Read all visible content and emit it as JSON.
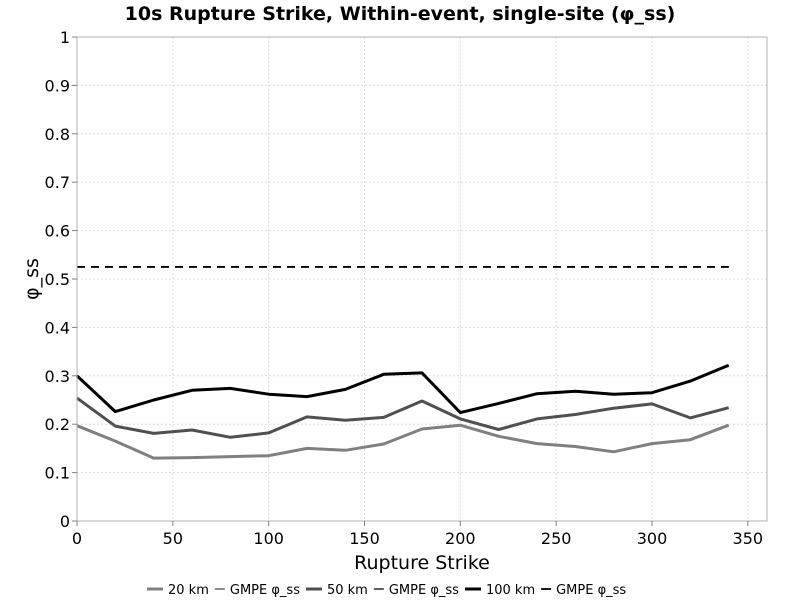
{
  "chart_data": {
    "type": "line",
    "title": "10s Rupture Strike, Within-event, single-site (φ_ss)",
    "xlabel": "Rupture Strike",
    "ylabel": "φ_ss",
    "xlim": [
      0,
      360
    ],
    "ylim": [
      0,
      1
    ],
    "x_ticks": [
      "0",
      "50",
      "100",
      "150",
      "200",
      "250",
      "300",
      "350"
    ],
    "y_ticks": [
      "0",
      "0.1",
      "0.2",
      "0.3",
      "0.4",
      "0.5",
      "0.6",
      "0.7",
      "0.8",
      "0.9",
      "1"
    ],
    "grid": true,
    "legend_position": "bottom",
    "x": [
      0,
      20,
      40,
      60,
      80,
      100,
      120,
      140,
      160,
      180,
      200,
      220,
      240,
      260,
      280,
      300,
      320,
      340
    ],
    "series": [
      {
        "name": "20 km",
        "color": "#808080",
        "style": "solid",
        "values": [
          0.197,
          0.165,
          0.13,
          0.131,
          0.133,
          0.135,
          0.15,
          0.146,
          0.159,
          0.19,
          0.198,
          0.175,
          0.16,
          0.154,
          0.143,
          0.16,
          0.168,
          0.198
        ]
      },
      {
        "name": "GMPE φ_ss",
        "color": "#808080",
        "style": "dashed",
        "values": [
          0.525,
          0.525,
          0.525,
          0.525,
          0.525,
          0.525,
          0.525,
          0.525,
          0.525,
          0.525,
          0.525,
          0.525,
          0.525,
          0.525,
          0.525,
          0.525,
          0.525,
          0.525
        ]
      },
      {
        "name": "50 km",
        "color": "#505050",
        "style": "solid",
        "values": [
          0.254,
          0.196,
          0.181,
          0.188,
          0.173,
          0.182,
          0.215,
          0.208,
          0.214,
          0.248,
          0.211,
          0.189,
          0.211,
          0.22,
          0.233,
          0.242,
          0.213,
          0.234
        ]
      },
      {
        "name": "GMPE φ_ss",
        "color": "#505050",
        "style": "dashed",
        "values": [
          0.525,
          0.525,
          0.525,
          0.525,
          0.525,
          0.525,
          0.525,
          0.525,
          0.525,
          0.525,
          0.525,
          0.525,
          0.525,
          0.525,
          0.525,
          0.525,
          0.525,
          0.525
        ]
      },
      {
        "name": "100 km",
        "color": "#000000",
        "style": "solid",
        "values": [
          0.3,
          0.226,
          0.25,
          0.27,
          0.274,
          0.262,
          0.257,
          0.272,
          0.303,
          0.306,
          0.224,
          0.243,
          0.263,
          0.268,
          0.262,
          0.265,
          0.289,
          0.322
        ]
      },
      {
        "name": "GMPE φ_ss",
        "color": "#000000",
        "style": "dashed",
        "values": [
          0.525,
          0.525,
          0.525,
          0.525,
          0.525,
          0.525,
          0.525,
          0.525,
          0.525,
          0.525,
          0.525,
          0.525,
          0.525,
          0.525,
          0.525,
          0.525,
          0.525,
          0.525
        ]
      }
    ]
  }
}
